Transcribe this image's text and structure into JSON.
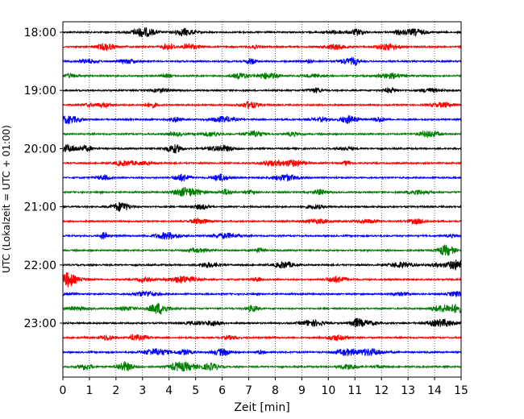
{
  "chart_data": {
    "type": "line",
    "title": "",
    "xlabel": "Zeit  [min]",
    "ylabel": "UTC (Lokalzeit = UTC + 01:00)",
    "xlim": [
      0,
      15
    ],
    "xticks": [
      0,
      1,
      2,
      3,
      4,
      5,
      6,
      7,
      8,
      9,
      10,
      11,
      12,
      13,
      14,
      15
    ],
    "ytick_labels": [
      "18:00",
      "19:00",
      "20:00",
      "21:00",
      "22:00",
      "23:00"
    ],
    "grid": "vertical dotted at each minute",
    "trace_interval_min": 15,
    "first_trace": "18:00",
    "trace_count": 24,
    "trace_colors": [
      "#000000",
      "#ff0000",
      "#0000ff",
      "#008000"
    ],
    "series": [
      {
        "start": "18:00",
        "color": "#000000"
      },
      {
        "start": "18:15",
        "color": "#ff0000"
      },
      {
        "start": "18:30",
        "color": "#0000ff"
      },
      {
        "start": "18:45",
        "color": "#008000"
      },
      {
        "start": "19:00",
        "color": "#000000"
      },
      {
        "start": "19:15",
        "color": "#ff0000"
      },
      {
        "start": "19:30",
        "color": "#0000ff"
      },
      {
        "start": "19:45",
        "color": "#008000"
      },
      {
        "start": "20:00",
        "color": "#000000"
      },
      {
        "start": "20:15",
        "color": "#ff0000"
      },
      {
        "start": "20:30",
        "color": "#0000ff"
      },
      {
        "start": "20:45",
        "color": "#008000"
      },
      {
        "start": "21:00",
        "color": "#000000"
      },
      {
        "start": "21:15",
        "color": "#ff0000"
      },
      {
        "start": "21:30",
        "color": "#0000ff"
      },
      {
        "start": "21:45",
        "color": "#008000"
      },
      {
        "start": "22:00",
        "color": "#000000"
      },
      {
        "start": "22:15",
        "color": "#ff0000"
      },
      {
        "start": "22:30",
        "color": "#0000ff"
      },
      {
        "start": "22:45",
        "color": "#008000"
      },
      {
        "start": "23:00",
        "color": "#000000"
      },
      {
        "start": "23:15",
        "color": "#ff0000"
      },
      {
        "start": "23:30",
        "color": "#0000ff"
      },
      {
        "start": "23:45",
        "color": "#008000"
      }
    ]
  }
}
